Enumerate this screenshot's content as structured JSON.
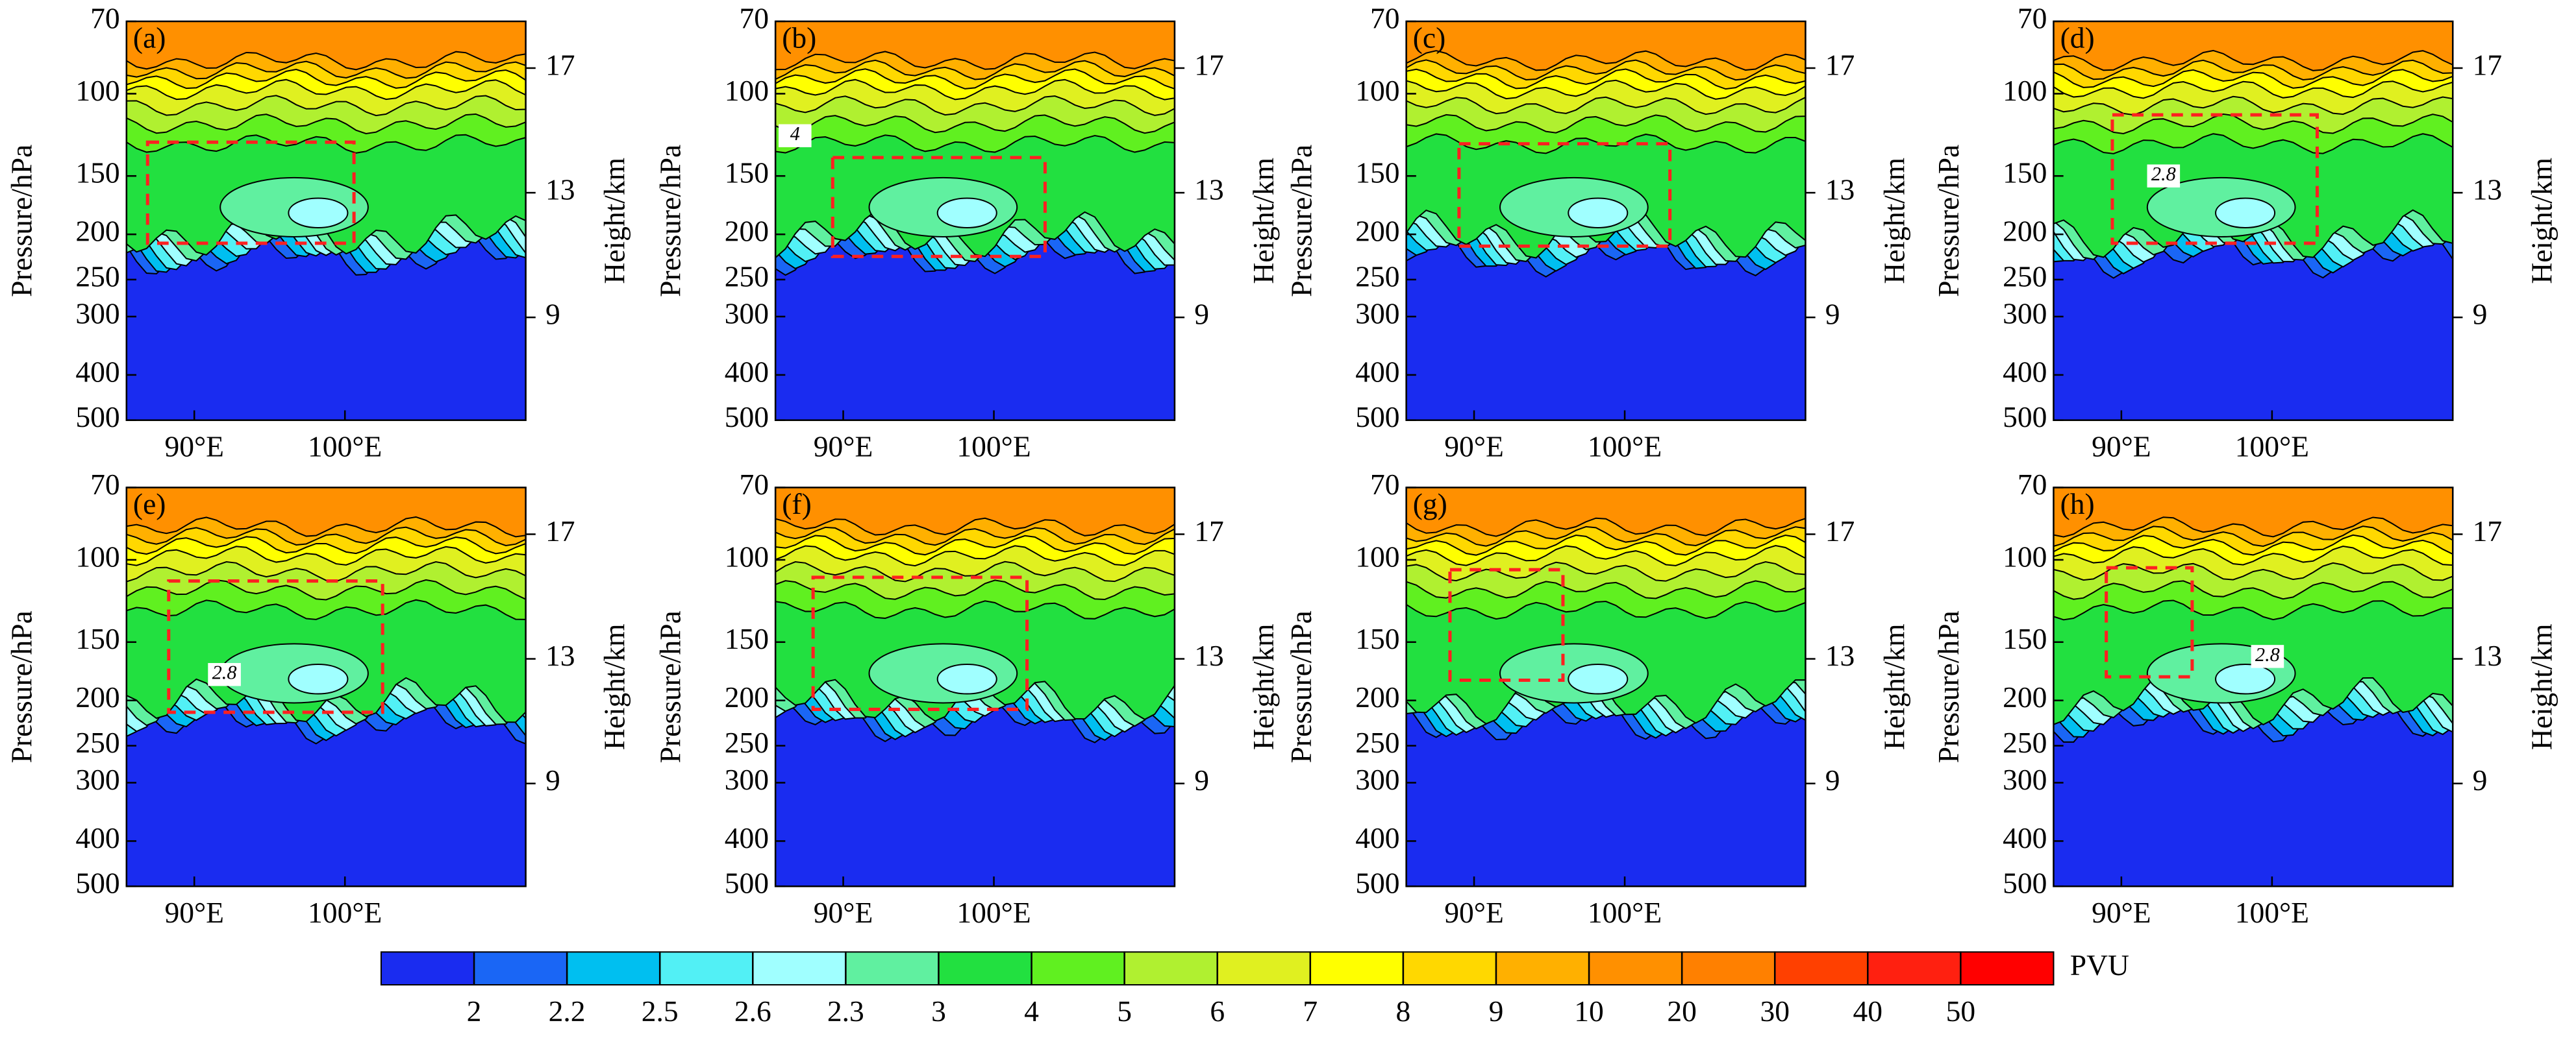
{
  "chart_data": [
    {
      "type": "contour",
      "label": "(a)",
      "ylabel": "Pressure/hPa",
      "y2label": "Height/km",
      "log_scale": true,
      "xlim": [
        85.5,
        112
      ],
      "xticks": [
        {
          "value": 90,
          "label": "90°E"
        },
        {
          "value": 100,
          "label": "100°E"
        }
      ],
      "ylim": [
        70,
        500
      ],
      "yticks": [
        70,
        100,
        150,
        200,
        250,
        300,
        400,
        500
      ],
      "y2lim": [
        18.5,
        5.7
      ],
      "y2ticks": [
        17,
        13,
        9
      ],
      "box_x": [
        86.9,
        100.6
      ],
      "box_y": [
        127,
        209
      ],
      "annotations": []
    },
    {
      "type": "contour",
      "label": "(b)",
      "ylabel": "Pressure/hPa",
      "y2label": "Height/km",
      "log_scale": true,
      "xlim": [
        85.5,
        112
      ],
      "xticks": [
        {
          "value": 90,
          "label": "90°E"
        },
        {
          "value": 100,
          "label": "100°E"
        }
      ],
      "ylim": [
        70,
        500
      ],
      "yticks": [
        70,
        100,
        150,
        200,
        250,
        300,
        400,
        500
      ],
      "y2lim": [
        18.5,
        5.7
      ],
      "y2ticks": [
        17,
        13,
        9
      ],
      "box_x": [
        89.3,
        103.4
      ],
      "box_y": [
        137,
        223
      ],
      "annotations": [
        {
          "text": "4",
          "x": 86.8,
          "y": 123
        }
      ]
    },
    {
      "type": "contour",
      "label": "(c)",
      "ylabel": "Pressure/hPa",
      "y2label": "Height/km",
      "log_scale": true,
      "xlim": [
        85.5,
        112
      ],
      "xticks": [
        {
          "value": 90,
          "label": "90°E"
        },
        {
          "value": 100,
          "label": "100°E"
        }
      ],
      "ylim": [
        70,
        500
      ],
      "yticks": [
        70,
        100,
        150,
        200,
        250,
        300,
        400,
        500
      ],
      "y2lim": [
        18.5,
        5.7
      ],
      "y2ticks": [
        17,
        13,
        9
      ],
      "box_x": [
        89,
        103
      ],
      "box_y": [
        128,
        212
      ],
      "annotations": []
    },
    {
      "type": "contour",
      "label": "(d)",
      "ylabel": "Pressure/hPa",
      "y2label": "Height/km",
      "log_scale": true,
      "xlim": [
        85.5,
        112
      ],
      "xticks": [
        {
          "value": 90,
          "label": "90°E"
        },
        {
          "value": 100,
          "label": "100°E"
        }
      ],
      "ylim": [
        70,
        500
      ],
      "yticks": [
        70,
        100,
        150,
        200,
        250,
        300,
        400,
        500
      ],
      "y2lim": [
        18.5,
        5.7
      ],
      "y2ticks": [
        17,
        13,
        9
      ],
      "box_x": [
        89.4,
        103
      ],
      "box_y": [
        111,
        209
      ],
      "annotations": [
        {
          "text": "2.8",
          "x": 92.8,
          "y": 150
        }
      ]
    },
    {
      "type": "contour",
      "label": "(e)",
      "ylabel": "Pressure/hPa",
      "y2label": "Height/km",
      "log_scale": true,
      "xlim": [
        85.5,
        112
      ],
      "xticks": [
        {
          "value": 90,
          "label": "90°E"
        },
        {
          "value": 100,
          "label": "100°E"
        }
      ],
      "ylim": [
        70,
        500
      ],
      "yticks": [
        70,
        100,
        150,
        200,
        250,
        300,
        400,
        500
      ],
      "y2lim": [
        18.5,
        5.7
      ],
      "y2ticks": [
        17,
        13,
        9
      ],
      "box_x": [
        88.3,
        102.5
      ],
      "box_y": [
        111,
        212
      ],
      "annotations": [
        {
          "text": "2.8",
          "x": 92,
          "y": 176
        }
      ]
    },
    {
      "type": "contour",
      "label": "(f)",
      "ylabel": "Pressure/hPa",
      "y2label": "Height/km",
      "log_scale": true,
      "xlim": [
        85.5,
        112
      ],
      "xticks": [
        {
          "value": 90,
          "label": "90°E"
        },
        {
          "value": 100,
          "label": "100°E"
        }
      ],
      "ylim": [
        70,
        500
      ],
      "yticks": [
        70,
        100,
        150,
        200,
        250,
        300,
        400,
        500
      ],
      "y2lim": [
        18.5,
        5.7
      ],
      "y2ticks": [
        17,
        13,
        9
      ],
      "box_x": [
        88,
        102.2
      ],
      "box_y": [
        109,
        209
      ],
      "annotations": []
    },
    {
      "type": "contour",
      "label": "(g)",
      "ylabel": "Pressure/hPa",
      "y2label": "Height/km",
      "log_scale": true,
      "xlim": [
        85.5,
        112
      ],
      "xticks": [
        {
          "value": 90,
          "label": "90°E"
        },
        {
          "value": 100,
          "label": "100°E"
        }
      ],
      "ylim": [
        70,
        500
      ],
      "yticks": [
        70,
        100,
        150,
        200,
        250,
        300,
        400,
        500
      ],
      "y2lim": [
        18.5,
        5.7
      ],
      "y2ticks": [
        17,
        13,
        9
      ],
      "box_x": [
        88.4,
        95.9
      ],
      "box_y": [
        105,
        181
      ],
      "annotations": []
    },
    {
      "type": "contour",
      "label": "(h)",
      "ylabel": "Pressure/hPa",
      "y2label": "Height/km",
      "log_scale": true,
      "xlim": [
        85.5,
        112
      ],
      "xticks": [
        {
          "value": 90,
          "label": "90°E"
        },
        {
          "value": 100,
          "label": "100°E"
        }
      ],
      "ylim": [
        70,
        500
      ],
      "yticks": [
        70,
        100,
        150,
        200,
        250,
        300,
        400,
        500
      ],
      "y2lim": [
        18.5,
        5.7
      ],
      "y2ticks": [
        17,
        13,
        9
      ],
      "box_x": [
        89,
        94.7
      ],
      "box_y": [
        104,
        178
      ],
      "annotations": [
        {
          "text": "2.8",
          "x": 99.7,
          "y": 161
        }
      ]
    },
    {
      "type": "colorbar",
      "label": "PVU",
      "levels": [
        2,
        2.2,
        2.5,
        2.6,
        2.3,
        3,
        4,
        5,
        6,
        7,
        8,
        9,
        10,
        20,
        30,
        40,
        50
      ],
      "colors": [
        "#1a2cf0",
        "#1a66f5",
        "#00bff0",
        "#52f0f5",
        "#a0ffff",
        "#60f0a0",
        "#22e040",
        "#60f020",
        "#b0f030",
        "#e0f020",
        "#ffff00",
        "#ffd800",
        "#ffb000",
        "#ff9000",
        "#ff8000",
        "#ff4000",
        "#ff2010",
        "#ff0000"
      ]
    }
  ]
}
